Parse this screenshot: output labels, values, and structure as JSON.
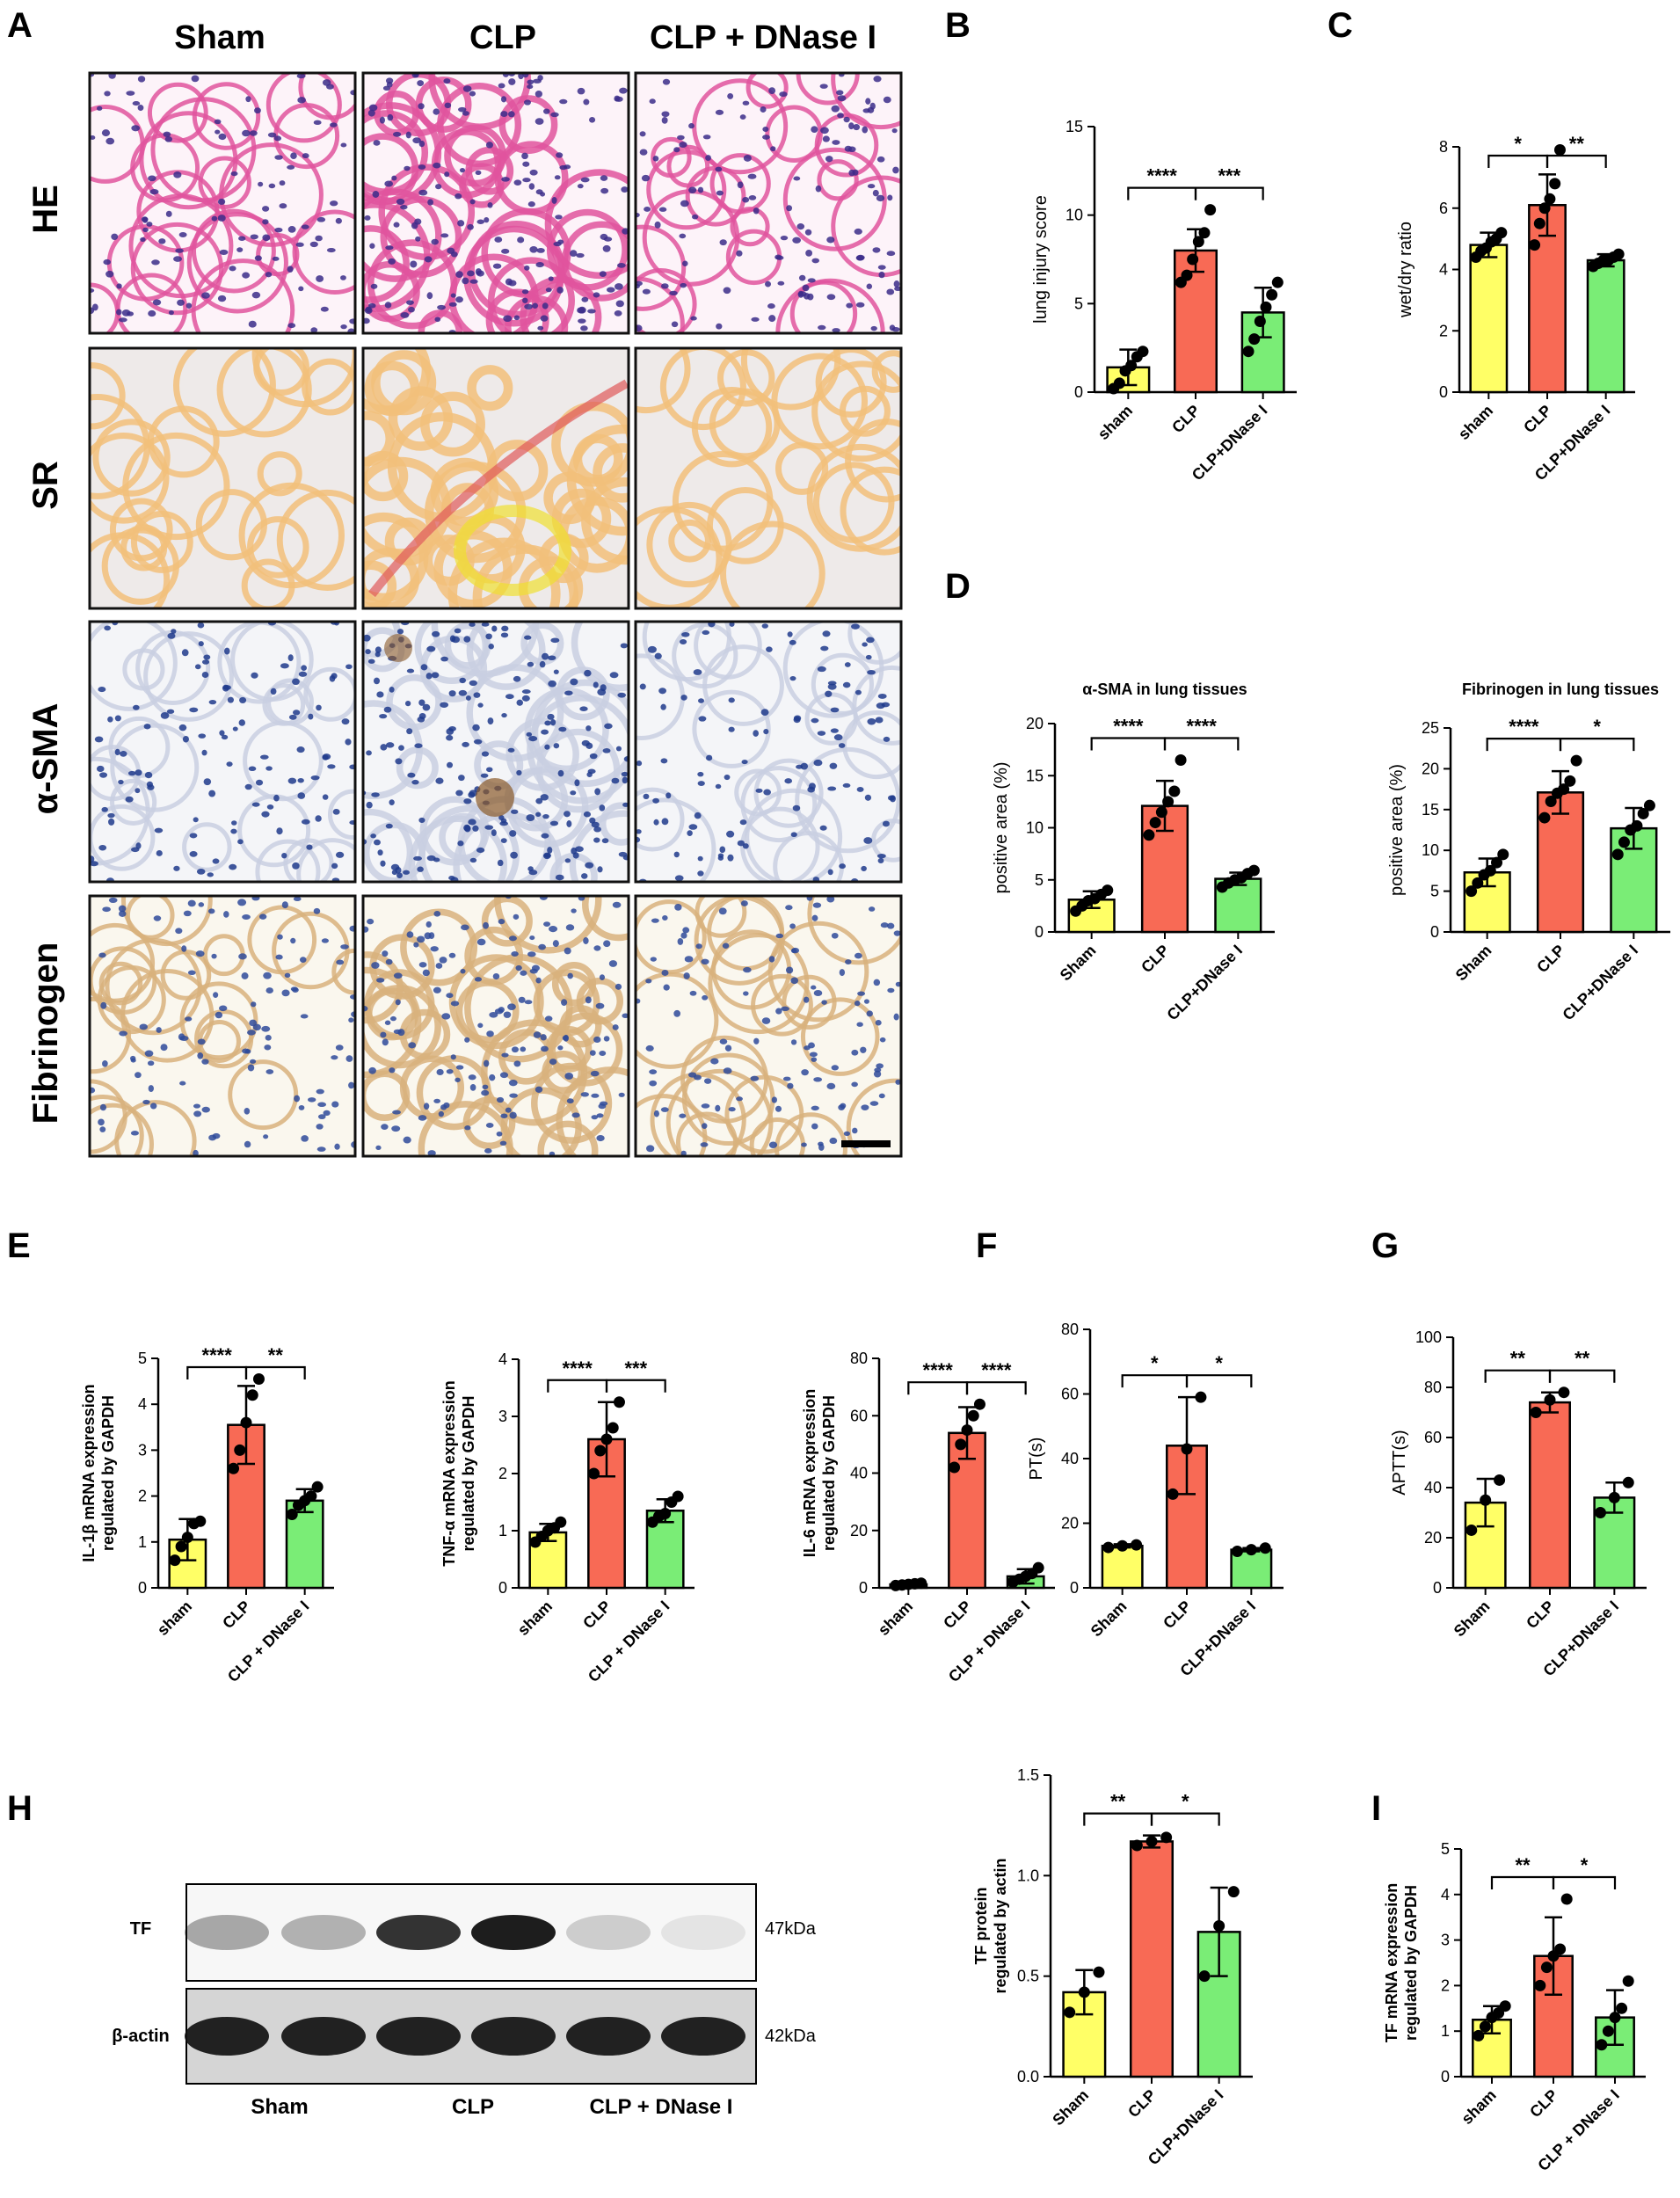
{
  "panel_letters": [
    "A",
    "B",
    "C",
    "D",
    "E",
    "F",
    "G",
    "H",
    "I"
  ],
  "histology": {
    "columns": [
      "Sham",
      "CLP",
      "CLP + DNase I"
    ],
    "rows": [
      "HE",
      "SR",
      "α-SMA",
      "Fibrinogen"
    ]
  },
  "colors": {
    "sham": "#ffff66",
    "clp": "#f86a55",
    "dnase": "#7aed76",
    "he_bg": "#fdf3f9",
    "he_tissue": "#e0549d",
    "he_nuclei": "#3b2b8a",
    "sr_bg": "#eeeae9",
    "sr_tissue": "#f2c07a",
    "sma_bg": "#f4f5f8",
    "sma_nuclei": "#1e3a8c",
    "fib_bg": "#faf7ee",
    "fib_tissue": "#d8b27c",
    "fib_nuclei": "#2e4a9a"
  },
  "western": {
    "bands": [
      {
        "name": "TF",
        "size": "47kDa"
      },
      {
        "name": "β-actin",
        "size": "42kDa"
      }
    ],
    "groups": [
      "Sham",
      "CLP",
      "CLP + DNase I"
    ]
  },
  "chart_data": [
    {
      "id": "B",
      "type": "bar",
      "ylabel": "lung injury score",
      "categories": [
        "sham",
        "CLP",
        "CLP+DNase I"
      ],
      "values": [
        1.4,
        8.0,
        4.5
      ],
      "errors": [
        1.0,
        1.2,
        1.4
      ],
      "points": [
        [
          0.2,
          0.5,
          1.2,
          1.5,
          2.0,
          2.3
        ],
        [
          6.2,
          6.6,
          7.5,
          8.5,
          9.0,
          10.3
        ],
        [
          2.3,
          3.0,
          4.0,
          4.8,
          5.5,
          6.2
        ]
      ],
      "ylim": [
        0,
        15
      ],
      "ticks": [
        0,
        5,
        10,
        15
      ],
      "significance": [
        {
          "from": 0,
          "to": 1,
          "label": "****"
        },
        {
          "from": 1,
          "to": 2,
          "label": "***"
        }
      ]
    },
    {
      "id": "C",
      "type": "bar",
      "ylabel": "wet/dry ratio",
      "categories": [
        "sham",
        "CLP",
        "CLP+DNase I"
      ],
      "values": [
        4.8,
        6.1,
        4.3
      ],
      "errors": [
        0.4,
        1.0,
        0.2
      ],
      "points": [
        [
          4.4,
          4.6,
          4.7,
          4.9,
          5.0,
          5.2
        ],
        [
          4.8,
          5.5,
          6.0,
          6.3,
          6.8,
          7.9
        ],
        [
          4.1,
          4.2,
          4.3,
          4.3,
          4.4,
          4.5
        ]
      ],
      "ylim": [
        0,
        8
      ],
      "ticks": [
        0,
        2,
        4,
        6,
        8
      ],
      "significance": [
        {
          "from": 0,
          "to": 1,
          "label": "*"
        },
        {
          "from": 1,
          "to": 2,
          "label": "**"
        }
      ]
    },
    {
      "id": "D1",
      "type": "bar",
      "title": "α-SMA in lung tissues",
      "ylabel": "positive area (%)",
      "categories": [
        "Sham",
        "CLP",
        "CLP+DNase I"
      ],
      "values": [
        3.1,
        12.1,
        5.1
      ],
      "errors": [
        0.8,
        2.4,
        0.6
      ],
      "points": [
        [
          2.0,
          2.5,
          3.0,
          3.2,
          3.6,
          4.0
        ],
        [
          9.3,
          10.5,
          11.5,
          12.5,
          13.5,
          16.5
        ],
        [
          4.3,
          4.7,
          5.0,
          5.2,
          5.6,
          5.9
        ]
      ],
      "ylim": [
        0,
        20
      ],
      "ticks": [
        0,
        5,
        10,
        15,
        20
      ],
      "significance": [
        {
          "from": 0,
          "to": 1,
          "label": "****"
        },
        {
          "from": 1,
          "to": 2,
          "label": "****"
        }
      ]
    },
    {
      "id": "D2",
      "type": "bar",
      "title": "Fibrinogen in lung tissues",
      "ylabel": "positive area (%)",
      "categories": [
        "Sham",
        "CLP",
        "CLP+DNase I"
      ],
      "values": [
        7.3,
        17.1,
        12.7
      ],
      "errors": [
        1.7,
        2.6,
        2.5
      ],
      "points": [
        [
          5.0,
          6.0,
          7.0,
          7.5,
          8.5,
          9.5
        ],
        [
          14.0,
          16.0,
          17.0,
          17.5,
          18.5,
          21.0
        ],
        [
          9.5,
          11.0,
          12.5,
          13.0,
          14.5,
          15.5
        ]
      ],
      "ylim": [
        0,
        25
      ],
      "ticks": [
        0,
        5,
        10,
        15,
        20,
        25
      ],
      "significance": [
        {
          "from": 0,
          "to": 1,
          "label": "****"
        },
        {
          "from": 1,
          "to": 2,
          "label": "*"
        }
      ]
    },
    {
      "id": "E1",
      "type": "bar",
      "ylabel": "IL-1β mRNA expression regulated by GAPDH",
      "categories": [
        "sham",
        "CLP",
        "CLP + DNase I"
      ],
      "values": [
        1.05,
        3.55,
        1.9
      ],
      "errors": [
        0.45,
        0.85,
        0.25
      ],
      "points": [
        [
          0.6,
          0.9,
          1.1,
          1.4,
          1.45
        ],
        [
          2.6,
          3.0,
          3.6,
          4.2,
          4.55
        ],
        [
          1.6,
          1.8,
          1.9,
          2.0,
          2.2
        ]
      ],
      "ylim": [
        0,
        5
      ],
      "ticks": [
        0,
        1,
        2,
        3,
        4,
        5
      ],
      "significance": [
        {
          "from": 0,
          "to": 1,
          "label": "****"
        },
        {
          "from": 1,
          "to": 2,
          "label": "**"
        }
      ]
    },
    {
      "id": "E2",
      "type": "bar",
      "ylabel": "TNF-α mRNA expression regulated by GAPDH",
      "categories": [
        "sham",
        "CLP",
        "CLP + DNase I"
      ],
      "values": [
        0.97,
        2.6,
        1.35
      ],
      "errors": [
        0.15,
        0.65,
        0.2
      ],
      "points": [
        [
          0.8,
          0.9,
          1.0,
          1.05,
          1.15
        ],
        [
          2.0,
          2.4,
          2.6,
          2.8,
          3.25
        ],
        [
          1.15,
          1.25,
          1.3,
          1.5,
          1.6
        ]
      ],
      "ylim": [
        0,
        4
      ],
      "ticks": [
        0,
        1,
        2,
        3,
        4
      ],
      "significance": [
        {
          "from": 0,
          "to": 1,
          "label": "****"
        },
        {
          "from": 1,
          "to": 2,
          "label": "***"
        }
      ]
    },
    {
      "id": "E3",
      "type": "bar",
      "ylabel": "IL-6 mRNA expression regulated by GAPDH",
      "categories": [
        "sham",
        "CLP",
        "CLP + DNase I"
      ],
      "values": [
        1.2,
        54,
        4
      ],
      "errors": [
        0.4,
        9,
        2.5
      ],
      "points": [
        [
          0.8,
          1.0,
          1.2,
          1.4,
          1.6
        ],
        [
          42,
          50,
          55,
          60,
          64
        ],
        [
          2,
          3,
          4,
          5,
          7
        ]
      ],
      "ylim": [
        0,
        80
      ],
      "ticks": [
        0,
        20,
        40,
        60,
        80
      ],
      "significance": [
        {
          "from": 0,
          "to": 1,
          "label": "****"
        },
        {
          "from": 1,
          "to": 2,
          "label": "****"
        }
      ]
    },
    {
      "id": "F",
      "type": "bar",
      "ylabel": "PT(s)",
      "categories": [
        "Sham",
        "CLP",
        "CLP+DNase I"
      ],
      "values": [
        13,
        44,
        11.8
      ],
      "errors": [
        0.5,
        15,
        0.5
      ],
      "points": [
        [
          12.5,
          13,
          13.3
        ],
        [
          29,
          43,
          59
        ],
        [
          11.3,
          11.8,
          12.3
        ]
      ],
      "ylim": [
        0,
        80
      ],
      "ticks": [
        0,
        20,
        40,
        60,
        80
      ],
      "significance": [
        {
          "from": 0,
          "to": 1,
          "label": "*"
        },
        {
          "from": 1,
          "to": 2,
          "label": "*"
        }
      ]
    },
    {
      "id": "G",
      "type": "bar",
      "ylabel": "APTT(s)",
      "categories": [
        "Sham",
        "CLP",
        "CLP+DNase I"
      ],
      "values": [
        34,
        74,
        36
      ],
      "errors": [
        9.5,
        4,
        6
      ],
      "points": [
        [
          23,
          35,
          43
        ],
        [
          70,
          75,
          78
        ],
        [
          30,
          36,
          42
        ]
      ],
      "ylim": [
        0,
        100
      ],
      "ticks": [
        0,
        20,
        40,
        60,
        80,
        100
      ],
      "significance": [
        {
          "from": 0,
          "to": 1,
          "label": "**"
        },
        {
          "from": 1,
          "to": 2,
          "label": "**"
        }
      ]
    },
    {
      "id": "H",
      "type": "bar",
      "ylabel": "TF protein regulated by actin",
      "categories": [
        "Sham",
        "CLP",
        "CLP+DNase I"
      ],
      "values": [
        0.42,
        1.17,
        0.72
      ],
      "errors": [
        0.11,
        0.03,
        0.22
      ],
      "points": [
        [
          0.32,
          0.42,
          0.52
        ],
        [
          1.15,
          1.17,
          1.19
        ],
        [
          0.5,
          0.75,
          0.92
        ]
      ],
      "ylim": [
        0,
        1.5
      ],
      "ticks": [
        0.0,
        0.5,
        1.0,
        1.5
      ],
      "significance": [
        {
          "from": 0,
          "to": 1,
          "label": "**"
        },
        {
          "from": 1,
          "to": 2,
          "label": "*"
        }
      ]
    },
    {
      "id": "I",
      "type": "bar",
      "ylabel": "TF mRNA expression regulated by GAPDH",
      "categories": [
        "sham",
        "CLP",
        "CLP + DNase I"
      ],
      "values": [
        1.25,
        2.65,
        1.3
      ],
      "errors": [
        0.3,
        0.85,
        0.6
      ],
      "points": [
        [
          0.9,
          1.1,
          1.3,
          1.4,
          1.55
        ],
        [
          2.0,
          2.4,
          2.65,
          2.8,
          3.9
        ],
        [
          0.7,
          1.0,
          1.3,
          1.5,
          2.1
        ]
      ],
      "ylim": [
        0,
        5
      ],
      "ticks": [
        0,
        1,
        2,
        3,
        4,
        5
      ],
      "significance": [
        {
          "from": 0,
          "to": 1,
          "label": "**"
        },
        {
          "from": 1,
          "to": 2,
          "label": "*"
        }
      ]
    }
  ]
}
